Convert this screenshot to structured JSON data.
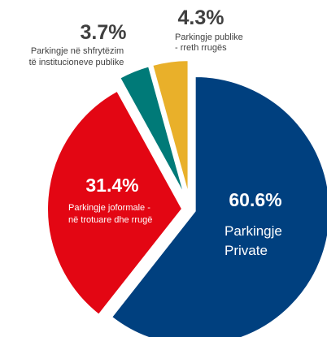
{
  "chart_data": {
    "type": "pie",
    "title": "",
    "slices": [
      {
        "key": "private",
        "value": 60.6,
        "value_label": "60.6%",
        "label_lines": [
          "Parkingje",
          "Private"
        ],
        "color": "#00407f"
      },
      {
        "key": "informal",
        "value": 31.4,
        "value_label": "31.4%",
        "label_lines": [
          "Parkingje joformale -",
          "në trotuare dhe rrugë"
        ],
        "color": "#e30613"
      },
      {
        "key": "institutional",
        "value": 3.7,
        "value_label": "3.7%",
        "label_lines": [
          "Parkingje në shfrytëzim",
          "të institucioneve publike"
        ],
        "color": "#007a78"
      },
      {
        "key": "public_street",
        "value": 4.3,
        "value_label": "4.3%",
        "label_lines": [
          "Parkingje publike",
          "- rreth rrugës"
        ],
        "color": "#e9b02a"
      }
    ],
    "start_angle_deg": 0,
    "direction": "clockwise",
    "exploded": true
  }
}
